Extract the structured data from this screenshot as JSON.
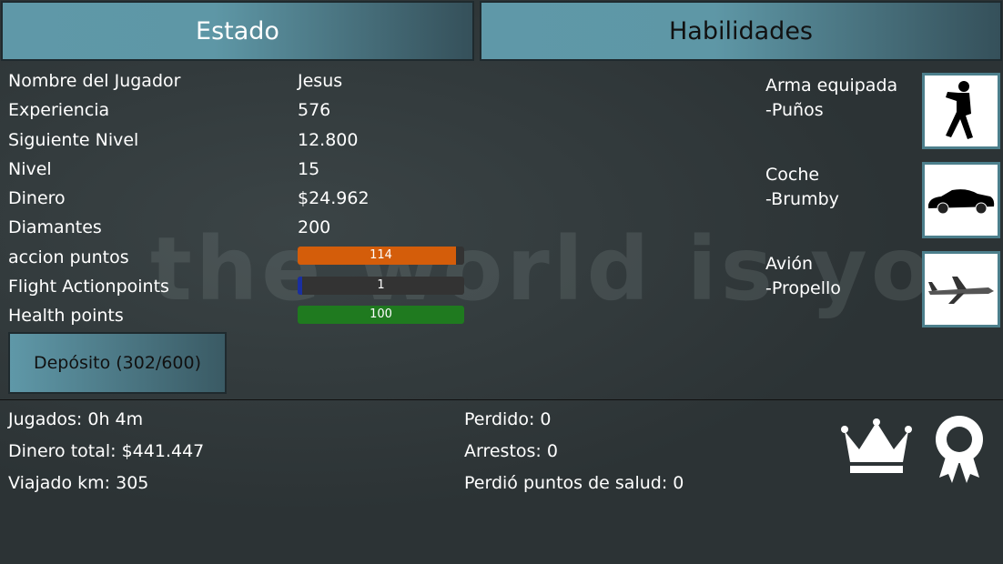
{
  "tabs": [
    {
      "label": "Estado"
    },
    {
      "label": "Habilidades"
    }
  ],
  "watermark": "the world is yours",
  "stats": [
    {
      "label": "Nombre del Jugador",
      "value": "Jesus"
    },
    {
      "label": "Experiencia",
      "value": "576"
    },
    {
      "label": "Siguiente Nivel",
      "value": "12.800"
    },
    {
      "label": "Nivel",
      "value": "15"
    },
    {
      "label": "Dinero",
      "value": "$24.962"
    },
    {
      "label": "Diamantes",
      "value": "200"
    }
  ],
  "bars": [
    {
      "label": "accion puntos",
      "value": "114",
      "fill_percent": 95,
      "color": "#d45d0a"
    },
    {
      "label": "Flight Actionpoints",
      "value": "1",
      "fill_percent": 3,
      "color": "#1a2fa0"
    },
    {
      "label": "Health points",
      "value": "100",
      "fill_percent": 100,
      "color": "#1f7a1f"
    }
  ],
  "deposit_label": "Depósito (302/600)",
  "summary_left": [
    {
      "label": "Jugados:",
      "value": "0h 4m"
    },
    {
      "label": "Dinero total:",
      "value": "$441.447"
    },
    {
      "label": "Viajado km:",
      "value": "305"
    }
  ],
  "summary_right": [
    {
      "label": "Perdido:",
      "value": "0"
    },
    {
      "label": "Arrestos:",
      "value": "0"
    },
    {
      "label": "Perdió puntos de salud:",
      "value": "0"
    }
  ],
  "equipment": [
    {
      "title": "Arma equipada",
      "item": "-Puños",
      "icon": "fighter-icon"
    },
    {
      "title": "Coche",
      "item": "-Brumby",
      "icon": "car-icon"
    },
    {
      "title": "Avión",
      "item": "-Propello",
      "icon": "plane-icon"
    }
  ],
  "icons": [
    "crown-icon",
    "award-ribbon-icon"
  ]
}
